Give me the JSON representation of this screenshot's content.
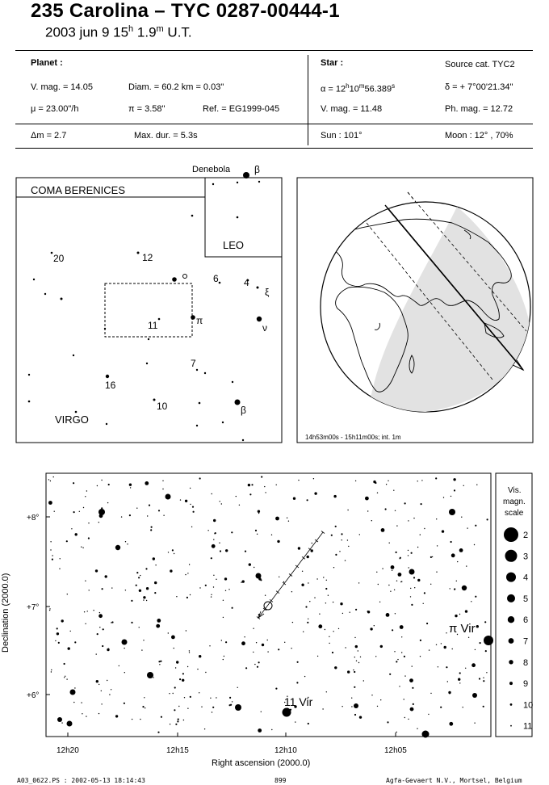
{
  "header": {
    "title": "235 Carolina  –  TYC 0287-00444-1",
    "date": "2003 jun  9  15",
    "hour_sup": "h",
    "minutes": " 1.9",
    "min_sup": "m",
    "ut": " U.T."
  },
  "planet": {
    "heading": "Planet :",
    "vmag": "V. mag. = 14.05",
    "diam": "Diam. = 60.2 km = 0.03\"",
    "mu": "μ =  23.00\"/h",
    "pi": "π =  3.58\"",
    "ref": "Ref. = EG1999-045",
    "dm": "Δm = 2.7",
    "maxdur": "Max. dur. = 5.3s"
  },
  "star": {
    "heading": "Star :",
    "source": "Source cat.  TYC2",
    "alpha": "α = 12h10m56.389s",
    "delta": "δ = + 7°00'21.34\"",
    "vmag": "V. mag. = 11.48",
    "phmag": "Ph. mag. = 12.72",
    "sun": "Sun : 101°",
    "moon": "Moon :  12° , 70%"
  },
  "finder": {
    "coma": "COMA BERENICES",
    "leo": "LEO",
    "virgo": "VIRGO",
    "denebola": "Denebola",
    "labels": [
      "β",
      "20",
      "12",
      "6",
      "4",
      "ξ",
      "11",
      "π",
      "ν",
      "7",
      "16",
      "10",
      "β"
    ]
  },
  "globe": {
    "caption": "14h53m00s - 15h11m00s; int.  1m"
  },
  "starmap": {
    "dec_label": "Declination (2000.0)",
    "ra_label": "Right ascension (2000.0)",
    "y_ticks": [
      "+8°",
      "+7°",
      "+6°"
    ],
    "x_ticks": [
      "12h20",
      "12h15",
      "12h10",
      "12h05"
    ],
    "star_labels": [
      "π Vir",
      "11 Vir"
    ]
  },
  "scale": {
    "title_lines": [
      "Vis.",
      "magn.",
      "scale"
    ],
    "mags": [
      "2",
      "3",
      "4",
      "5",
      "6",
      "7",
      "8",
      "9",
      "10",
      "11"
    ]
  },
  "footer": {
    "left": "A03_0622.PS : 2002-05-13 18:14:43",
    "center": "899",
    "right": "Agfa-Gevaert N.V., Mortsel, Belgium"
  }
}
